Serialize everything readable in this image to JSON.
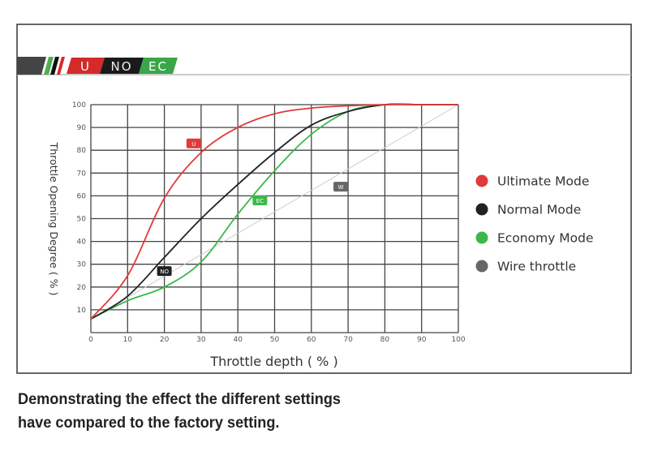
{
  "header_badges": [
    {
      "text": "U",
      "color": "#d42a2a"
    },
    {
      "text": "NO",
      "color": "#1a1a1a"
    },
    {
      "text": "EC",
      "color": "#3aa64a"
    }
  ],
  "caption_lines": [
    "Demonstrating the effect the different settings",
    "have compared to the factory setting."
  ],
  "chart_data": {
    "type": "line",
    "xlabel": "Throttle depth ( % )",
    "ylabel": "Throttle Opening Degree ( % )",
    "xlim": [
      0,
      100
    ],
    "ylim": [
      0,
      100
    ],
    "xticks": [
      "0",
      "10",
      "20",
      "30",
      "40",
      "50",
      "60",
      "70",
      "80",
      "90",
      "100"
    ],
    "yticks": [
      "10",
      "20",
      "30",
      "40",
      "50",
      "60",
      "70",
      "80",
      "90",
      "100"
    ],
    "grid": true,
    "legend_placement": "right",
    "x": [
      0,
      10,
      20,
      30,
      40,
      50,
      60,
      70,
      80,
      90,
      100
    ],
    "series": [
      {
        "name": "Ultimate Mode",
        "color": "#e03a3a",
        "values": [
          6,
          25,
          59,
          79,
          90,
          96,
          98.5,
          99.5,
          100,
          100,
          100
        ],
        "label_at": [
          28,
          83
        ]
      },
      {
        "name": "Normal Mode",
        "color": "#222222",
        "values": [
          6,
          16,
          33,
          50,
          65,
          79,
          91,
          97,
          100,
          100,
          100
        ],
        "label_at": [
          20,
          27
        ]
      },
      {
        "name": "Economy Mode",
        "color": "#3cb84a",
        "values": [
          6,
          14,
          20,
          31,
          52,
          71,
          87,
          97,
          100,
          100,
          100
        ],
        "label_at": [
          46,
          58
        ]
      },
      {
        "name": "Wire throttle",
        "color": "#cccccc",
        "values": [
          6,
          15.4,
          24.8,
          34.2,
          43.6,
          53,
          62.4,
          71.8,
          81.2,
          90.6,
          100
        ],
        "label_at": [
          68,
          64
        ],
        "legend_color": "#666666"
      }
    ]
  }
}
